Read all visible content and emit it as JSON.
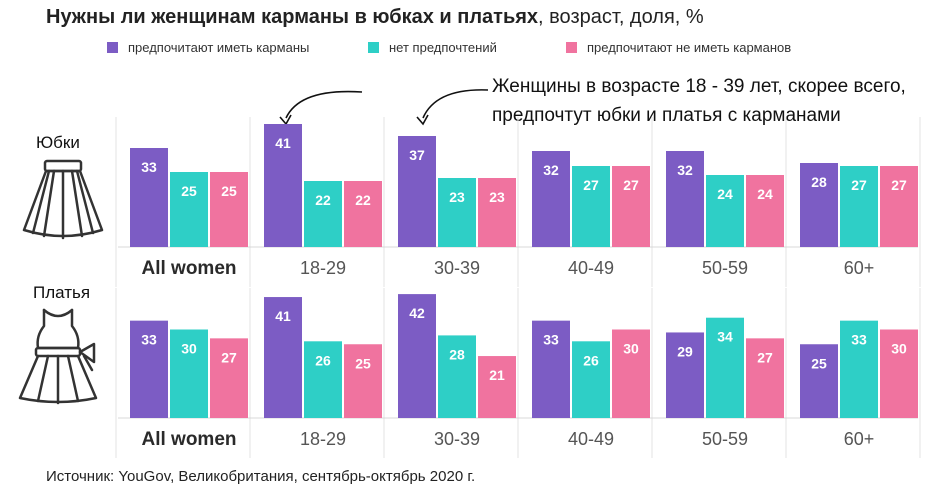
{
  "title_bold": "Нужны ли женщинам карманы в юбках и платьях",
  "title_rest": ", возраст, доля, %",
  "legend": [
    {
      "label": "предпочитают иметь карманы",
      "color": "#7c5cc4"
    },
    {
      "label": "нет предпочтений",
      "color": "#2ecfc6"
    },
    {
      "label": "предпочитают не иметь карманов",
      "color": "#f0739f"
    }
  ],
  "annotation_line1": "Женщины в возрасте 18 - 39 лет, скорее всего,",
  "annotation_line2": "предпочтут юбки и платья с карманами",
  "row_labels": {
    "skirts": "Юбки",
    "dresses": "Платья"
  },
  "icons": {
    "skirts": "skirt-icon",
    "dresses": "dress-icon"
  },
  "source": "Источник: YouGov, Великобритания, сентябрь-октябрь 2020 г.",
  "chart_data": [
    {
      "type": "bar",
      "name": "Юбки",
      "categories": [
        "All women",
        "18-29",
        "30-39",
        "40-49",
        "50-59",
        "60+"
      ],
      "series": [
        {
          "name": "предпочитают иметь карманы",
          "values": [
            33,
            41,
            37,
            32,
            32,
            28
          ]
        },
        {
          "name": "нет предпочтений",
          "values": [
            25,
            22,
            23,
            27,
            24,
            27
          ]
        },
        {
          "name": "предпочитают не иметь карманов",
          "values": [
            25,
            22,
            23,
            27,
            24,
            27
          ]
        }
      ],
      "ylim": [
        0,
        45
      ]
    },
    {
      "type": "bar",
      "name": "Платья",
      "categories": [
        "All women",
        "18-29",
        "30-39",
        "40-49",
        "50-59",
        "60+"
      ],
      "series": [
        {
          "name": "предпочитают иметь карманы",
          "values": [
            33,
            41,
            42,
            33,
            29,
            25
          ]
        },
        {
          "name": "нет предпочтений",
          "values": [
            30,
            26,
            28,
            26,
            34,
            33
          ]
        },
        {
          "name": "предпочитают не иметь карманов",
          "values": [
            27,
            25,
            21,
            30,
            27,
            30
          ]
        }
      ],
      "ylim": [
        0,
        45
      ]
    }
  ]
}
